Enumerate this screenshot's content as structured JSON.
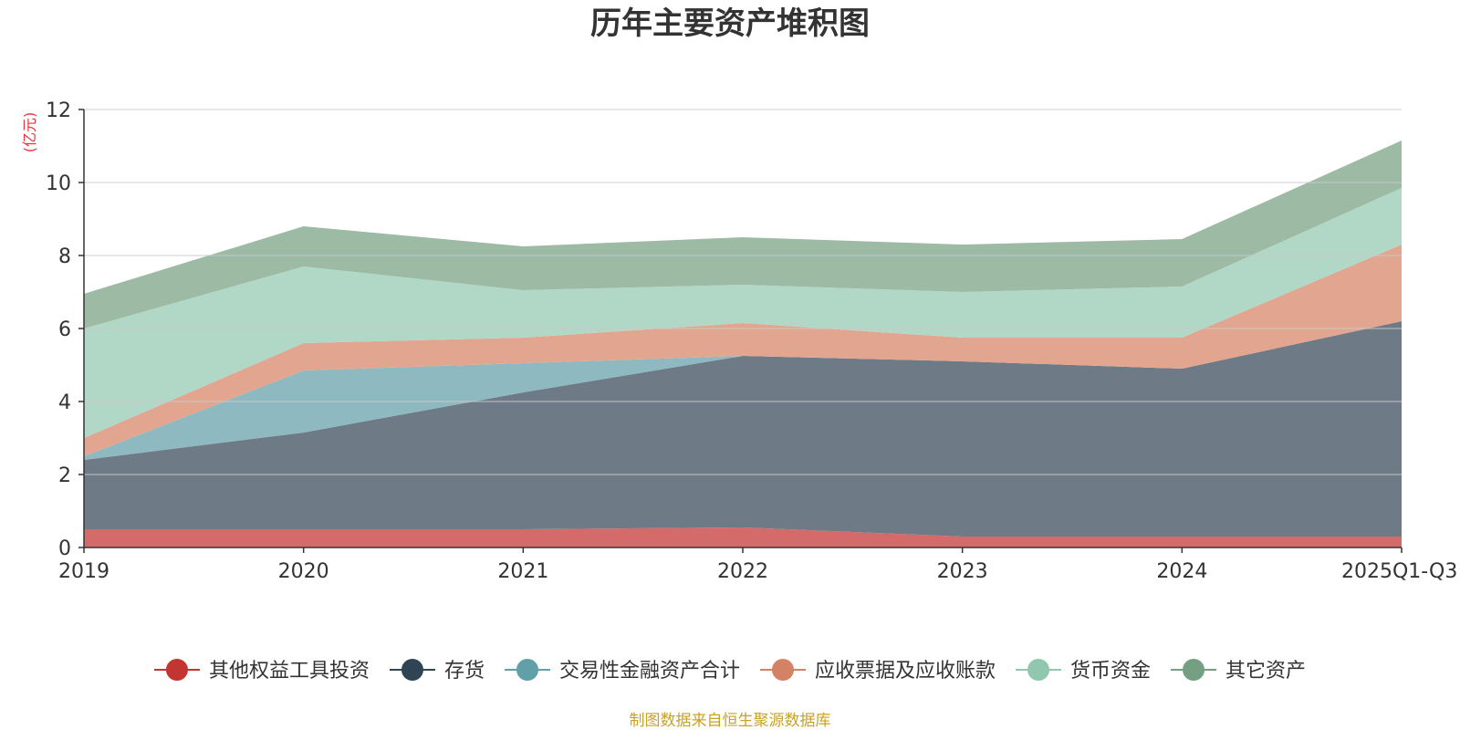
{
  "colors": {
    "accent_unit": "#e5323e",
    "source_text": "#c9a227",
    "axis": "#333333",
    "grid": "#c8c8c8"
  },
  "chart_data": {
    "type": "area",
    "stacked": true,
    "title": "历年主要资产堆积图",
    "ylabel_unit": "(亿元)",
    "ylim": [
      0,
      12
    ],
    "yticks": [
      0,
      2,
      4,
      6,
      8,
      10,
      12
    ],
    "grid": true,
    "legend_position": "bottom",
    "categories": [
      "2019",
      "2020",
      "2021",
      "2022",
      "2023",
      "2024",
      "2025Q1-Q3"
    ],
    "series": [
      {
        "name": "其他权益工具投资",
        "color": "#d46a6a",
        "legend_color": "#c23531",
        "values": [
          0.5,
          0.5,
          0.5,
          0.55,
          0.3,
          0.3,
          0.3
        ]
      },
      {
        "name": "存货",
        "color": "#6e7b87",
        "legend_color": "#2f4554",
        "values": [
          1.9,
          2.65,
          3.75,
          4.7,
          4.8,
          4.6,
          5.9
        ]
      },
      {
        "name": "交易性金融资产合计",
        "color": "#8fb9c0",
        "legend_color": "#61a0a8",
        "values": [
          0.1,
          1.7,
          0.8,
          0.0,
          0.0,
          0.0,
          0.0
        ]
      },
      {
        "name": "应收票据及应收账款",
        "color": "#e2a58f",
        "legend_color": "#d48265",
        "values": [
          0.5,
          0.75,
          0.7,
          0.9,
          0.65,
          0.85,
          2.1
        ]
      },
      {
        "name": "货币资金",
        "color": "#b1d8c6",
        "legend_color": "#91c7ae",
        "values": [
          3.0,
          2.1,
          1.3,
          1.05,
          1.25,
          1.4,
          1.55
        ]
      },
      {
        "name": "其它资产",
        "color": "#9dbaa4",
        "legend_color": "#749f83",
        "values": [
          0.95,
          1.1,
          1.2,
          1.3,
          1.3,
          1.3,
          1.3
        ]
      }
    ],
    "source_note": "制图数据来自恒生聚源数据库"
  }
}
